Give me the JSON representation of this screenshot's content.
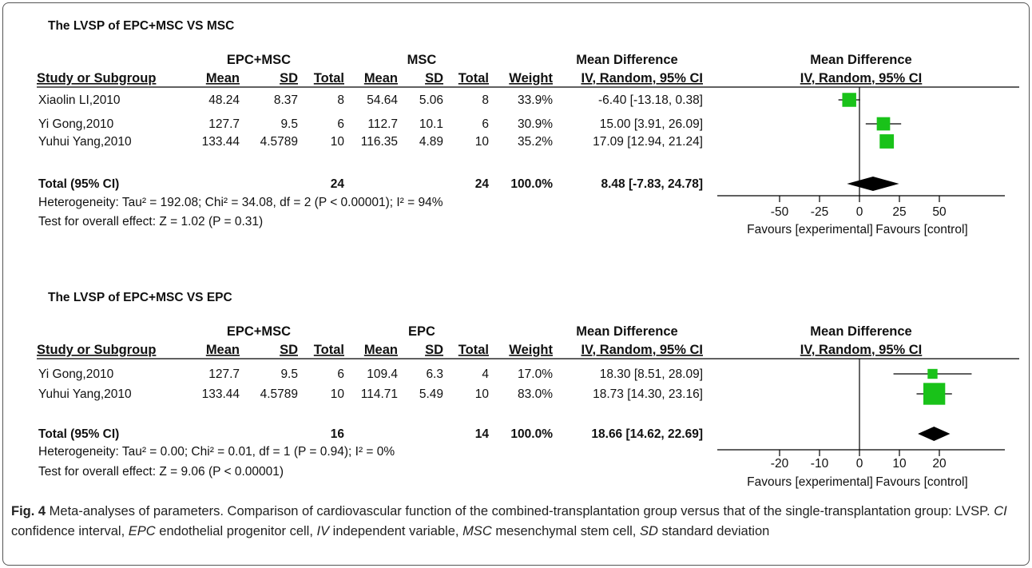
{
  "colors": {
    "marker": "#19c219",
    "diamond": "#000000",
    "text": "#111111",
    "frame": "#555555"
  },
  "forest_plots": [
    {
      "title": "The LVSP of EPC+MSC VS MSC",
      "group1_label": "EPC+MSC",
      "group2_label": "MSC",
      "effect_header": "Mean Difference",
      "col_headers": {
        "study": "Study or Subgroup",
        "mean1": "Mean",
        "sd1": "SD",
        "total1": "Total",
        "mean2": "Mean",
        "sd2": "SD",
        "total2": "Total",
        "weight": "Weight",
        "ci": "IV, Random, 95% CI",
        "plot": "IV, Random, 95% CI"
      },
      "studies": [
        {
          "name": "Xiaolin LI,2010",
          "mean1": "48.24",
          "sd1": "8.37",
          "total1": "8",
          "mean2": "54.64",
          "sd2": "5.06",
          "total2": "8",
          "weight": "33.9%",
          "ci_text": "-6.40 [-13.18, 0.38]",
          "md": -6.4,
          "lo": -13.18,
          "hi": 0.38,
          "w": 33.9
        },
        {
          "name": "Yi Gong,2010",
          "mean1": "127.7",
          "sd1": "9.5",
          "total1": "6",
          "mean2": "112.7",
          "sd2": "10.1",
          "total2": "6",
          "weight": "30.9%",
          "ci_text": "15.00 [3.91, 26.09]",
          "md": 15.0,
          "lo": 3.91,
          "hi": 26.09,
          "w": 30.9
        },
        {
          "name": "Yuhui Yang,2010",
          "mean1": "133.44",
          "sd1": "4.5789",
          "total1": "10",
          "mean2": "116.35",
          "sd2": "4.89",
          "total2": "10",
          "weight": "35.2%",
          "ci_text": "17.09 [12.94, 21.24]",
          "md": 17.09,
          "lo": 12.94,
          "hi": 21.24,
          "w": 35.2
        }
      ],
      "total": {
        "label": "Total (95% CI)",
        "total1": "24",
        "total2": "24",
        "weight": "100.0%",
        "ci_text": "8.48 [-7.83, 24.78]",
        "md": 8.48,
        "lo": -7.83,
        "hi": 24.78
      },
      "heterogeneity": "Heterogeneity: Tau² = 192.08; Chi² = 34.08, df = 2 (P < 0.00001); I² = 94%",
      "overall_effect": "Test for overall effect: Z = 1.02 (P = 0.31)",
      "axis": {
        "min": -50,
        "max": 50,
        "ticks": [
          "-50",
          "-25",
          "0",
          "25",
          "50"
        ],
        "tick_values": [
          -50,
          -25,
          0,
          25,
          50
        ]
      },
      "favours_left": "Favours [experimental]",
      "favours_right": "Favours [control]"
    },
    {
      "title": "The LVSP of EPC+MSC VS EPC",
      "group1_label": "EPC+MSC",
      "group2_label": "EPC",
      "effect_header": "Mean Difference",
      "col_headers": {
        "study": "Study or Subgroup",
        "mean1": "Mean",
        "sd1": "SD",
        "total1": "Total",
        "mean2": "Mean",
        "sd2": "SD",
        "total2": "Total",
        "weight": "Weight",
        "ci": "IV, Random, 95% CI",
        "plot": "IV, Random, 95% CI"
      },
      "studies": [
        {
          "name": "Yi Gong,2010",
          "mean1": "127.7",
          "sd1": "9.5",
          "total1": "6",
          "mean2": "109.4",
          "sd2": "6.3",
          "total2": "4",
          "weight": "17.0%",
          "ci_text": "18.30 [8.51, 28.09]",
          "md": 18.3,
          "lo": 8.51,
          "hi": 28.09,
          "w": 17.0
        },
        {
          "name": "Yuhui Yang,2010",
          "mean1": "133.44",
          "sd1": "4.5789",
          "total1": "10",
          "mean2": "114.71",
          "sd2": "5.49",
          "total2": "10",
          "weight": "83.0%",
          "ci_text": "18.73 [14.30, 23.16]",
          "md": 18.73,
          "lo": 14.3,
          "hi": 23.16,
          "w": 83.0
        }
      ],
      "total": {
        "label": "Total (95% CI)",
        "total1": "16",
        "total2": "14",
        "weight": "100.0%",
        "ci_text": "18.66 [14.62, 22.69]",
        "md": 18.66,
        "lo": 14.62,
        "hi": 22.69
      },
      "heterogeneity": "Heterogeneity: Tau² = 0.00; Chi² = 0.01, df = 1 (P = 0.94); I² = 0%",
      "overall_effect": "Test for overall effect: Z = 9.06 (P < 0.00001)",
      "axis": {
        "min": -20,
        "max": 20,
        "ticks": [
          "-20",
          "-10",
          "0",
          "10",
          "20"
        ],
        "tick_values": [
          -20,
          -10,
          0,
          10,
          20
        ]
      },
      "favours_left": "Favours [experimental]",
      "favours_right": "Favours [control]"
    }
  ],
  "caption": {
    "label": "Fig. 4",
    "text1": " Meta-analyses of parameters. Comparison of cardiovascular function of the combined-transplantation group versus that of the single-transplantation group: LVSP. ",
    "abbr_ci": "CI",
    "text_ci": " confidence interval, ",
    "abbr_epc": "EPC",
    "text_epc": " endothelial progenitor cell, ",
    "abbr_iv": "IV",
    "text_iv": " independent variable, ",
    "abbr_msc": "MSC",
    "text_msc": " mesenchymal stem cell, ",
    "abbr_sd": "SD",
    "text_sd": " standard deviation"
  },
  "chart_data": [
    {
      "type": "forest",
      "title": "The LVSP of EPC+MSC VS MSC",
      "xlim": [
        -50,
        50
      ],
      "series": [
        {
          "name": "Xiaolin LI,2010",
          "values": [
            -6.4,
            -13.18,
            0.38
          ]
        },
        {
          "name": "Yi Gong,2010",
          "values": [
            15.0,
            3.91,
            26.09
          ]
        },
        {
          "name": "Yuhui Yang,2010",
          "values": [
            17.09,
            12.94,
            21.24
          ]
        },
        {
          "name": "Total (95% CI)",
          "values": [
            8.48,
            -7.83,
            24.78
          ]
        }
      ]
    },
    {
      "type": "forest",
      "title": "The LVSP of EPC+MSC VS EPC",
      "xlim": [
        -20,
        20
      ],
      "series": [
        {
          "name": "Yi Gong,2010",
          "values": [
            18.3,
            8.51,
            28.09
          ]
        },
        {
          "name": "Yuhui Yang,2010",
          "values": [
            18.73,
            14.3,
            23.16
          ]
        },
        {
          "name": "Total (95% CI)",
          "values": [
            18.66,
            14.62,
            22.69
          ]
        }
      ]
    }
  ]
}
